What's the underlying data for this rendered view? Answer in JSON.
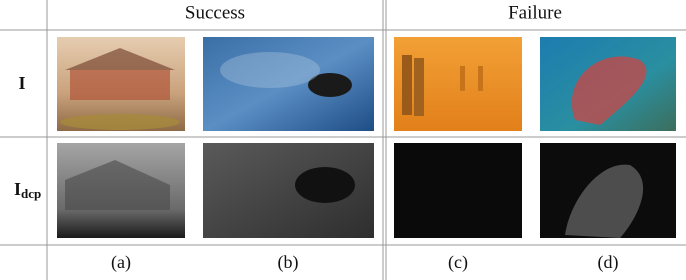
{
  "header": {
    "groups": [
      "Success",
      "Failure"
    ]
  },
  "rows": [
    {
      "label": "I"
    },
    {
      "label": "I",
      "subscript": "dcp"
    }
  ],
  "captions": [
    "(a)",
    "(b)",
    "(c)",
    "(d)"
  ]
}
